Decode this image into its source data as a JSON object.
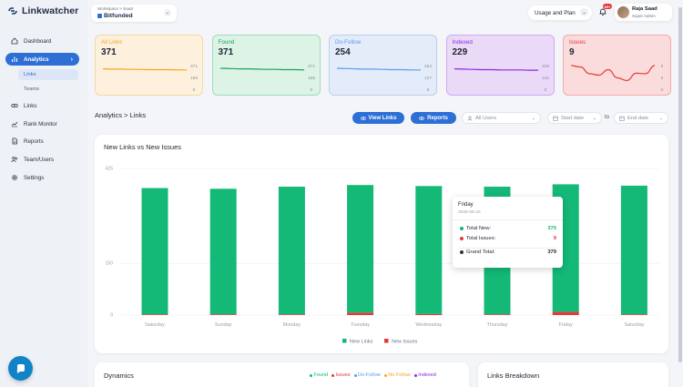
{
  "app": {
    "name": "Linkwatcher"
  },
  "sidebar": {
    "items": [
      {
        "label": "Dashboard",
        "icon": "home-icon"
      },
      {
        "label": "Analytics",
        "icon": "bar-chart-icon",
        "active": true
      },
      {
        "label": "Links",
        "icon": "link-icon"
      },
      {
        "label": "Rank Monitor",
        "icon": "trend-icon"
      },
      {
        "label": "Reports",
        "icon": "file-icon"
      },
      {
        "label": "Team/Users",
        "icon": "users-icon"
      },
      {
        "label": "Settings",
        "icon": "gear-icon"
      }
    ],
    "subitems": [
      {
        "label": "Links",
        "active": true
      },
      {
        "label": "Teams"
      }
    ]
  },
  "header": {
    "workspace_label": "Workspace > SaaS",
    "workspace_name": "Bitfunded",
    "plan_label": "Usage and Plan",
    "notif_badge": "99+",
    "user_name": "Raja Saad",
    "user_role": "Super Admin"
  },
  "cards": [
    {
      "title": "All Links",
      "value": "371",
      "ticks": [
        "371",
        "186",
        "0"
      ],
      "color": "#f5a524",
      "bg": "#fdf1dd",
      "border": "#f3d9a4",
      "trend": [
        0.78,
        0.77,
        0.77,
        0.76,
        0.76,
        0.75,
        0.75,
        0.75,
        0.74,
        0.74
      ]
    },
    {
      "title": "Found",
      "value": "371",
      "ticks": [
        "371",
        "186",
        "0"
      ],
      "color": "#1aa364",
      "bg": "#dcf3e6",
      "border": "#9fdcbc",
      "trend": [
        0.8,
        0.79,
        0.78,
        0.78,
        0.77,
        0.76,
        0.76,
        0.75,
        0.75,
        0.74
      ]
    },
    {
      "title": "Do-Follow",
      "value": "254",
      "ticks": [
        "254",
        "127",
        "0"
      ],
      "color": "#5b9cf0",
      "bg": "#e3ecf8",
      "border": "#b9d0ee",
      "trend": [
        0.8,
        0.79,
        0.78,
        0.77,
        0.77,
        0.76,
        0.75,
        0.75,
        0.74,
        0.74
      ]
    },
    {
      "title": "Indexed",
      "value": "229",
      "ticks": [
        "229",
        "115",
        "0"
      ],
      "color": "#8a2be2",
      "bg": "#ead9f7",
      "border": "#cfaaf0",
      "trend": [
        0.78,
        0.77,
        0.76,
        0.75,
        0.75,
        0.74,
        0.74,
        0.74,
        0.73,
        0.73
      ]
    },
    {
      "title": "Issues",
      "value": "9",
      "ticks": [
        "9",
        "5",
        "0"
      ],
      "color": "#e53935",
      "bg": "#fbdcdc",
      "border": "#f2aaaa",
      "trend": [
        0.9,
        0.85,
        0.6,
        0.55,
        0.75,
        0.45,
        0.35,
        0.62,
        0.6,
        0.9
      ]
    }
  ],
  "toolbar": {
    "breadcrumb": "Analytics > Links",
    "view_links": "View Links",
    "reports": "Reports",
    "all_users": "All Users",
    "start_date": "Start date",
    "to_label": "to",
    "end_date": "End date"
  },
  "chart_data": {
    "type": "bar",
    "title": "New Links vs New Issues",
    "categories": [
      "Saturday",
      "Sunday",
      "Monday",
      "Tuesday",
      "Wednesday",
      "Thursday",
      "Friday",
      "Saturday"
    ],
    "series": [
      {
        "name": "New Links",
        "color": "#14b877",
        "values": [
          366,
          364,
          370,
          370,
          371,
          370,
          370,
          373
        ]
      },
      {
        "name": "New Issues",
        "color": "#e53935",
        "values": [
          2,
          1,
          2,
          7,
          3,
          1,
          9,
          1
        ]
      }
    ],
    "yticks": [
      "0",
      "150",
      "425"
    ],
    "ylim": [
      0,
      425
    ],
    "ylim_top": 425
  },
  "tooltip": {
    "day": "Friday",
    "date": "2025-06-20",
    "total_new_label": "Total New:",
    "total_new": "370",
    "total_issues_label": "Total Issues:",
    "total_issues": "9",
    "grand_total_label": "Grand Total:",
    "grand_total": "379"
  },
  "dynamics": {
    "title": "Dynamics",
    "legend": [
      {
        "label": "Found",
        "color": "#14b877"
      },
      {
        "label": "Issues",
        "color": "#e53935"
      },
      {
        "label": "Do-Follow",
        "color": "#5b9cf0"
      },
      {
        "label": "No Follow",
        "color": "#f5a524"
      },
      {
        "label": "Indexed",
        "color": "#8a2be2"
      }
    ]
  },
  "breakdown": {
    "title": "Links Breakdown"
  }
}
